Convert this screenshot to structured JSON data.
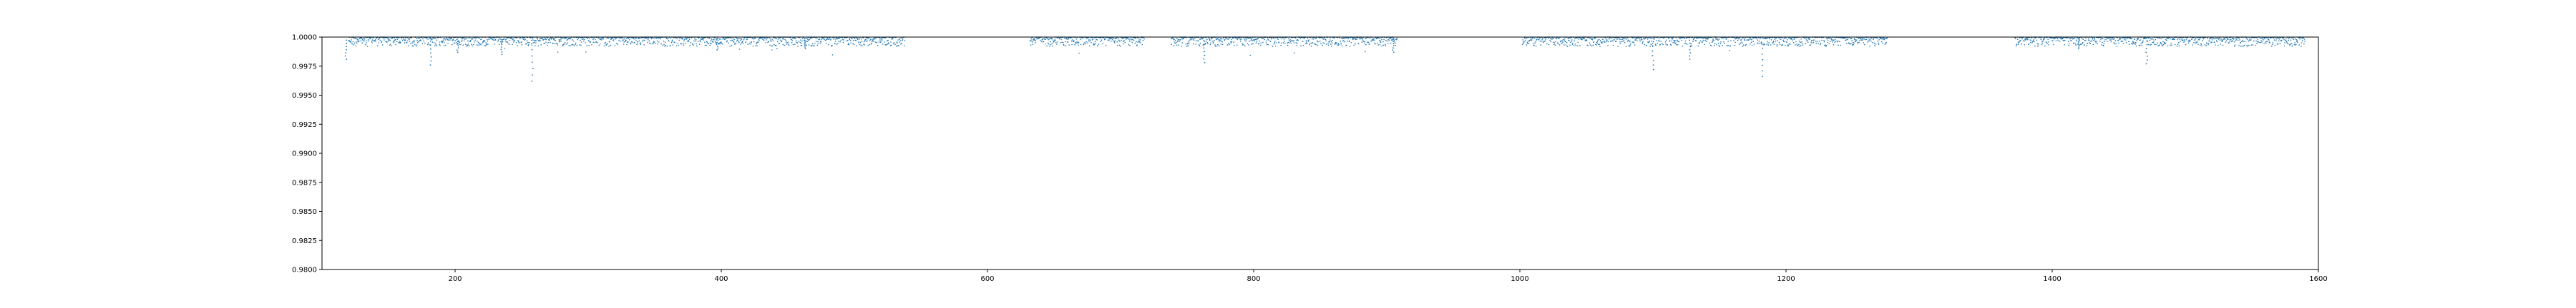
{
  "chart_data": {
    "type": "scatter",
    "title": "",
    "xlabel": "",
    "ylabel": "",
    "xlim": [
      100,
      1600
    ],
    "ylim": [
      0.98,
      1.0
    ],
    "grid": false,
    "legend": "none",
    "x_ticks": [
      200,
      400,
      600,
      800,
      1000,
      1200,
      1400,
      1600
    ],
    "y_ticks": [
      0.98,
      0.9825,
      0.985,
      0.9875,
      0.99,
      0.9925,
      0.995,
      0.9975,
      1.0
    ],
    "x_tick_labels": [
      "200",
      "400",
      "600",
      "800",
      "1000",
      "1200",
      "1400",
      "1600"
    ],
    "y_tick_labels": [
      "0.9800",
      "0.9825",
      "0.9850",
      "0.9875",
      "0.9900",
      "0.9925",
      "0.9950",
      "0.9975",
      "1.0000"
    ],
    "series": [
      {
        "color": "#1f77b4",
        "observed_segments": [
          [
            120,
            538
          ],
          [
            632,
            718
          ],
          [
            738,
            908
          ],
          [
            1002,
            1276
          ],
          [
            1372,
            1590
          ]
        ],
        "typical_flux_range": [
          0.9992,
          1.0
        ],
        "dips": [
          {
            "x": 118,
            "y": 0.9981
          },
          {
            "x": 182,
            "y": 0.9976
          },
          {
            "x": 202,
            "y": 0.9987
          },
          {
            "x": 235,
            "y": 0.9985
          },
          {
            "x": 258,
            "y": 0.9962
          },
          {
            "x": 397,
            "y": 0.9989
          },
          {
            "x": 463,
            "y": 0.999
          },
          {
            "x": 763,
            "y": 0.9978
          },
          {
            "x": 905,
            "y": 0.9987
          },
          {
            "x": 1100,
            "y": 0.9972
          },
          {
            "x": 1128,
            "y": 0.9981
          },
          {
            "x": 1182,
            "y": 0.9966
          },
          {
            "x": 1420,
            "y": 0.999
          },
          {
            "x": 1471,
            "y": 0.9977
          }
        ]
      }
    ]
  }
}
